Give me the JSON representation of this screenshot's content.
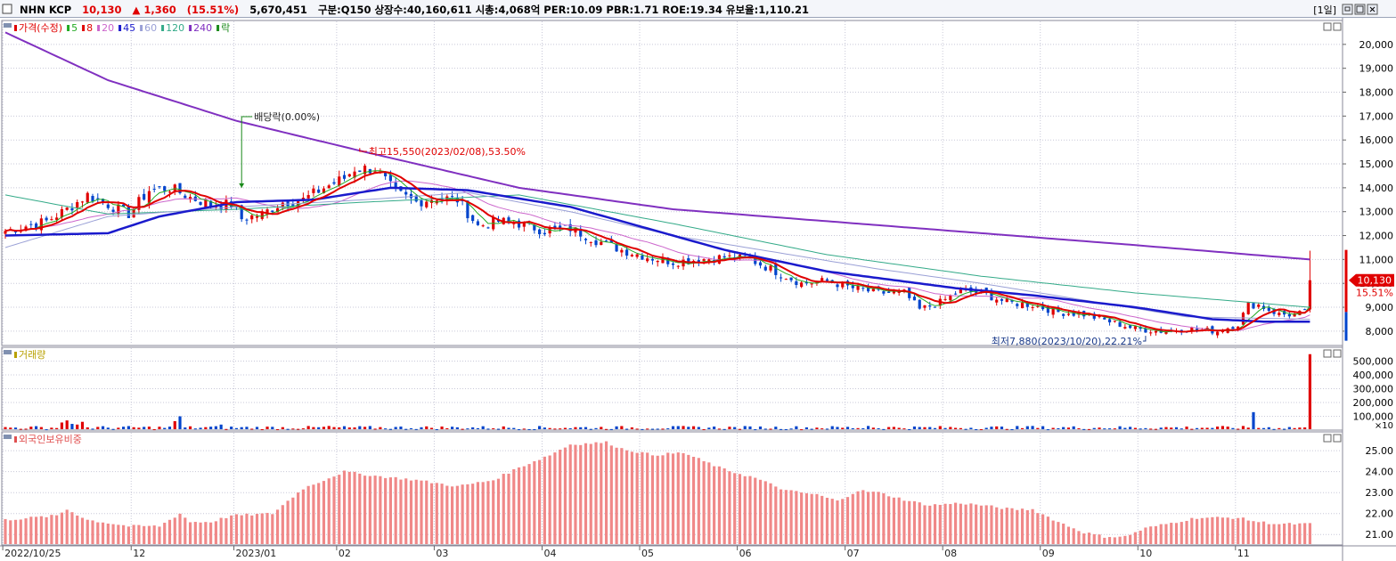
{
  "header": {
    "name": "NHN KCP",
    "price": "10,130",
    "change": "▲ 1,360",
    "change_pct": "(15.51%)",
    "volume": "5,670,451",
    "info": "구분:Q150 상장수:40,160,611 시총:4,068억 PER:10.09 PBR:1.71 ROE:19.34 유보율:1,110.21",
    "period_button": "[1일]",
    "colors": {
      "up": "#e00000",
      "down": "#0044cc"
    }
  },
  "chart_data": [
    {
      "type": "candlestick",
      "panel": "price",
      "legend": [
        {
          "label": "가격(수정)",
          "color": "#e00000"
        },
        {
          "label": "5",
          "color": "#22aa22"
        },
        {
          "label": "8",
          "color": "#e00000"
        },
        {
          "label": "20",
          "color": "#cc66cc"
        },
        {
          "label": "45",
          "color": "#1a1acc"
        },
        {
          "label": "60",
          "color": "#9aa0d6"
        },
        {
          "label": "120",
          "color": "#33aa88"
        },
        {
          "label": "240",
          "color": "#8030c0"
        },
        {
          "label": "락",
          "color": "#1a8a1a"
        }
      ],
      "x_labels": [
        "2022/10/25",
        "12",
        "2023/01",
        "02",
        "03",
        "04",
        "05",
        "06",
        "07",
        "08",
        "09",
        "10",
        "11"
      ],
      "x_label_bars": [
        0,
        25,
        45,
        65,
        84,
        105,
        124,
        143,
        164,
        183,
        202,
        221,
        240
      ],
      "ylim": [
        7400,
        21000
      ],
      "yticks": [
        8000,
        9000,
        10000,
        11000,
        12000,
        13000,
        14000,
        15000,
        16000,
        17000,
        18000,
        19000,
        20000
      ],
      "ytick_labels": [
        "8,000",
        "9,000",
        "10,000",
        "11,000",
        "12,000",
        "13,000",
        "14,000",
        "15,000",
        "16,000",
        "17,000",
        "18,000",
        "19,000",
        "20,000"
      ],
      "close_anchors": [
        [
          0,
          12200
        ],
        [
          8,
          12600
        ],
        [
          12,
          13100
        ],
        [
          16,
          13700
        ],
        [
          20,
          13300
        ],
        [
          24,
          12900
        ],
        [
          28,
          13900
        ],
        [
          32,
          14000
        ],
        [
          36,
          13600
        ],
        [
          40,
          13300
        ],
        [
          44,
          13300
        ],
        [
          46,
          12700
        ],
        [
          50,
          12900
        ],
        [
          54,
          13400
        ],
        [
          58,
          13500
        ],
        [
          62,
          14000
        ],
        [
          66,
          14400
        ],
        [
          68,
          14800
        ],
        [
          72,
          14800
        ],
        [
          76,
          13800
        ],
        [
          80,
          13400
        ],
        [
          84,
          13600
        ],
        [
          88,
          13500
        ],
        [
          92,
          12400
        ],
        [
          96,
          12600
        ],
        [
          100,
          12500
        ],
        [
          105,
          12200
        ],
        [
          110,
          12300
        ],
        [
          115,
          11800
        ],
        [
          120,
          11400
        ],
        [
          125,
          11100
        ],
        [
          130,
          10900
        ],
        [
          135,
          11000
        ],
        [
          140,
          11100
        ],
        [
          145,
          11000
        ],
        [
          150,
          10500
        ],
        [
          155,
          10000
        ],
        [
          160,
          10100
        ],
        [
          165,
          9800
        ],
        [
          170,
          9600
        ],
        [
          175,
          9600
        ],
        [
          178,
          8900
        ],
        [
          182,
          9200
        ],
        [
          186,
          9700
        ],
        [
          190,
          9600
        ],
        [
          195,
          9200
        ],
        [
          200,
          9100
        ],
        [
          205,
          8800
        ],
        [
          210,
          8700
        ],
        [
          215,
          8400
        ],
        [
          220,
          8100
        ],
        [
          225,
          8000
        ],
        [
          230,
          8100
        ],
        [
          236,
          8000
        ],
        [
          240,
          8300
        ],
        [
          242,
          9100
        ],
        [
          244,
          9100
        ],
        [
          248,
          8700
        ],
        [
          251,
          8700
        ],
        [
          253,
          8770
        ],
        [
          254,
          10130
        ]
      ],
      "ma_lines": [
        {
          "name": "240",
          "color": "#8030c0",
          "width": 2,
          "points": [
            [
              0,
              20500
            ],
            [
              20,
              18500
            ],
            [
              45,
              16800
            ],
            [
              70,
              15500
            ],
            [
              100,
              14000
            ],
            [
              130,
              13100
            ],
            [
              160,
              12600
            ],
            [
              190,
              12100
            ],
            [
              220,
              11600
            ],
            [
              254,
              11000
            ]
          ]
        },
        {
          "name": "120",
          "color": "#33aa88",
          "width": 1,
          "points": [
            [
              0,
              13700
            ],
            [
              20,
              12900
            ],
            [
              45,
              13100
            ],
            [
              70,
              13400
            ],
            [
              100,
              13700
            ],
            [
              130,
              12500
            ],
            [
              160,
              11200
            ],
            [
              190,
              10300
            ],
            [
              220,
              9600
            ],
            [
              254,
              9000
            ]
          ]
        },
        {
          "name": "60",
          "color": "#9aa0d6",
          "width": 1,
          "points": [
            [
              0,
              11500
            ],
            [
              20,
              12800
            ],
            [
              45,
              13200
            ],
            [
              70,
              13500
            ],
            [
              90,
              13800
            ],
            [
              110,
              13000
            ],
            [
              130,
              12000
            ],
            [
              150,
              11300
            ],
            [
              170,
              10600
            ],
            [
              190,
              10000
            ],
            [
              210,
              9300
            ],
            [
              230,
              8600
            ],
            [
              254,
              8500
            ]
          ]
        },
        {
          "name": "45",
          "color": "#1a1acc",
          "width": 2.5,
          "points": [
            [
              0,
              12000
            ],
            [
              20,
              12100
            ],
            [
              30,
              12800
            ],
            [
              45,
              13400
            ],
            [
              60,
              13500
            ],
            [
              75,
              14000
            ],
            [
              90,
              13900
            ],
            [
              110,
              13200
            ],
            [
              120,
              12600
            ],
            [
              140,
              11400
            ],
            [
              160,
              10500
            ],
            [
              185,
              9800
            ],
            [
              200,
              9500
            ],
            [
              220,
              9000
            ],
            [
              235,
              8500
            ],
            [
              245,
              8400
            ],
            [
              254,
              8400
            ]
          ]
        }
      ],
      "annotations": [
        {
          "text": "배당락(0.00%)",
          "color": "#1a8a1a",
          "bar": 46
        },
        {
          "text": "최고15,550(2023/02/08),53.50%",
          "color": "#e00000",
          "bar": 69,
          "value": 15550
        },
        {
          "text": "최저7,880(2023/10/20),22.21%",
          "color": "#1a3a8a",
          "bar": 222,
          "value": 7880
        }
      ],
      "current_price_label": "10,130",
      "current_pct_label": "15.51%"
    },
    {
      "type": "bar",
      "panel": "volume",
      "legend": [
        {
          "label": "거래량",
          "color": "#b8a000"
        }
      ],
      "ylim": [
        0,
        600000
      ],
      "yticks": [
        100000,
        200000,
        300000,
        400000,
        500000
      ],
      "ytick_labels": [
        "100,000",
        "200,000",
        "300,000",
        "400,000",
        "500,000"
      ],
      "unit_label": "×10",
      "base_level": 15000,
      "spikes": [
        [
          11,
          55000
        ],
        [
          12,
          70000
        ],
        [
          13,
          45000
        ],
        [
          14,
          40000
        ],
        [
          15,
          60000
        ],
        [
          33,
          65000
        ],
        [
          34,
          100000
        ],
        [
          42,
          40000
        ],
        [
          63,
          30000
        ],
        [
          168,
          30000
        ],
        [
          200,
          30000
        ],
        [
          243,
          130000
        ],
        [
          254,
          550000
        ]
      ]
    },
    {
      "type": "bar",
      "panel": "foreign_holding",
      "legend": [
        {
          "label": "외국인보유비중",
          "color": "#e05050"
        }
      ],
      "ylim": [
        20.5,
        25.9
      ],
      "yticks": [
        21,
        22,
        23,
        24,
        25
      ],
      "ytick_labels": [
        "21.00",
        "22.00",
        "23.00",
        "24.00",
        "25.00"
      ],
      "anchors": [
        [
          0,
          21.7
        ],
        [
          10,
          21.9
        ],
        [
          12,
          22.2
        ],
        [
          16,
          21.7
        ],
        [
          24,
          21.4
        ],
        [
          30,
          21.4
        ],
        [
          34,
          22.0
        ],
        [
          36,
          21.6
        ],
        [
          40,
          21.6
        ],
        [
          44,
          21.9
        ],
        [
          52,
          22.0
        ],
        [
          58,
          23.2
        ],
        [
          66,
          24.0
        ],
        [
          72,
          23.8
        ],
        [
          80,
          23.6
        ],
        [
          88,
          23.3
        ],
        [
          95,
          23.6
        ],
        [
          100,
          24.2
        ],
        [
          106,
          24.8
        ],
        [
          110,
          25.3
        ],
        [
          117,
          25.4
        ],
        [
          120,
          25.1
        ],
        [
          126,
          24.8
        ],
        [
          132,
          24.9
        ],
        [
          135,
          24.6
        ],
        [
          140,
          24.1
        ],
        [
          146,
          23.7
        ],
        [
          152,
          23.1
        ],
        [
          158,
          22.9
        ],
        [
          162,
          22.6
        ],
        [
          166,
          23.1
        ],
        [
          170,
          23.0
        ],
        [
          176,
          22.6
        ],
        [
          180,
          22.4
        ],
        [
          186,
          22.5
        ],
        [
          190,
          22.4
        ],
        [
          196,
          22.2
        ],
        [
          200,
          22.2
        ],
        [
          205,
          21.6
        ],
        [
          210,
          21.1
        ],
        [
          214,
          20.9
        ],
        [
          218,
          20.9
        ],
        [
          222,
          21.3
        ],
        [
          228,
          21.6
        ],
        [
          232,
          21.8
        ],
        [
          240,
          21.8
        ],
        [
          244,
          21.6
        ],
        [
          248,
          21.5
        ],
        [
          254,
          21.5
        ]
      ]
    }
  ]
}
